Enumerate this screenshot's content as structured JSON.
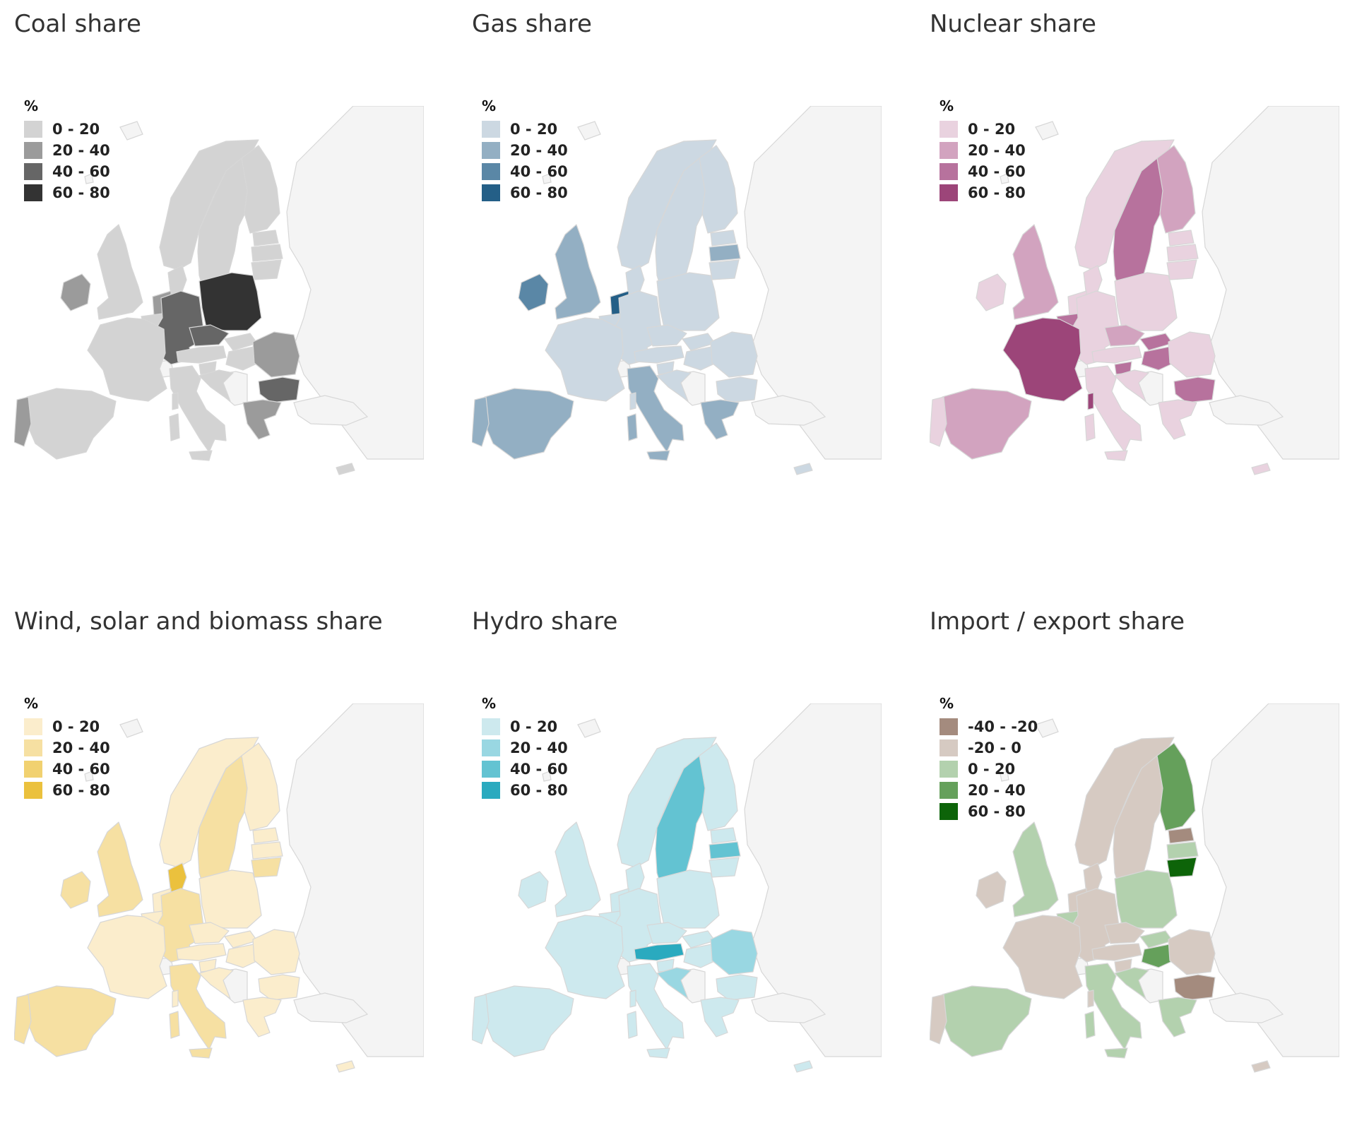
{
  "panels": [
    {
      "id": "coal",
      "title": "Coal share",
      "legend": {
        "unit": "%",
        "classes": [
          {
            "label": "0 - 20",
            "color": "#d3d3d3"
          },
          {
            "label": "20 - 40",
            "color": "#9b9b9b"
          },
          {
            "label": "40 - 60",
            "color": "#666666"
          },
          {
            "label": "60 - 80",
            "color": "#333333"
          }
        ]
      },
      "highlight": {
        "germany": 2,
        "czechia": 2,
        "poland": 3,
        "bulgaria": 2,
        "greece": 1,
        "romania": 1,
        "portugal": 1,
        "ireland": 1,
        "netherlands": 1
      }
    },
    {
      "id": "gas",
      "title": "Gas share",
      "legend": {
        "unit": "%",
        "classes": [
          {
            "label": "0 - 20",
            "color": "#ccd8e2"
          },
          {
            "label": "20 - 40",
            "color": "#93afc3"
          },
          {
            "label": "40 - 60",
            "color": "#5a87a6"
          },
          {
            "label": "60 - 80",
            "color": "#245f87"
          }
        ]
      },
      "highlight": {
        "netherlands": 3,
        "ireland": 2,
        "uk": 1,
        "italy": 1,
        "spain": 1,
        "portugal": 1,
        "latvia": 1,
        "greece": 1
      }
    },
    {
      "id": "nuclear",
      "title": "Nuclear share",
      "legend": {
        "unit": "%",
        "classes": [
          {
            "label": "0 - 20",
            "color": "#e9d2df"
          },
          {
            "label": "20 - 40",
            "color": "#d2a3bf"
          },
          {
            "label": "40 - 60",
            "color": "#b7729d"
          },
          {
            "label": "60 - 80",
            "color": "#9c4579"
          }
        ]
      },
      "highlight": {
        "france": 3,
        "sweden": 2,
        "finland": 1,
        "belgium": 2,
        "slovakia": 2,
        "hungary": 2,
        "bulgaria": 2,
        "slovenia": 2,
        "spain": 1,
        "uk": 1,
        "czechia": 1
      }
    },
    {
      "id": "renewables",
      "title": "Wind, solar and biomass share",
      "legend": {
        "unit": "%",
        "classes": [
          {
            "label": "0 - 20",
            "color": "#fbedcc"
          },
          {
            "label": "20 - 40",
            "color": "#f6e0a2"
          },
          {
            "label": "40 - 60",
            "color": "#f1d170"
          },
          {
            "label": "60 - 80",
            "color": "#ebc13d"
          }
        ]
      },
      "highlight": {
        "denmark": 3,
        "sweden": 1,
        "germany": 1,
        "uk": 1,
        "ireland": 1,
        "spain": 1,
        "portugal": 1,
        "italy": 1,
        "lithuania": 1
      }
    },
    {
      "id": "hydro",
      "title": "Hydro share",
      "legend": {
        "unit": "%",
        "classes": [
          {
            "label": "0 - 20",
            "color": "#cde9ee"
          },
          {
            "label": "20 - 40",
            "color": "#99d7e2"
          },
          {
            "label": "40 - 60",
            "color": "#63c3d2"
          },
          {
            "label": "60 - 80",
            "color": "#2aaabf"
          }
        ]
      },
      "highlight": {
        "sweden": 2,
        "latvia": 2,
        "austria": 3,
        "romania": 1,
        "croatia": 1
      }
    },
    {
      "id": "import-export",
      "title": "Import / export share",
      "legend": {
        "unit": "%",
        "classes": [
          {
            "label": "-40 - -20",
            "color": "#a48b7e"
          },
          {
            "label": "-20 - 0",
            "color": "#d6cac2"
          },
          {
            "label": "0 - 20",
            "color": "#b3d1ae"
          },
          {
            "label": "20 - 40",
            "color": "#65a05b"
          },
          {
            "label": "60 - 80",
            "color": "#0d6409"
          }
        ]
      },
      "base_class": 1,
      "highlight": {
        "finland": 3,
        "estonia": 0,
        "lithuania": 4,
        "hungary": 3,
        "bulgaria": 0,
        "poland": 2,
        "italy": 2,
        "spain": 2,
        "uk": 2,
        "latvia": 2,
        "belgium": 2,
        "croatia": 2,
        "greece": 2,
        "slovakia": 2,
        "ireland": 1
      }
    }
  ]
}
